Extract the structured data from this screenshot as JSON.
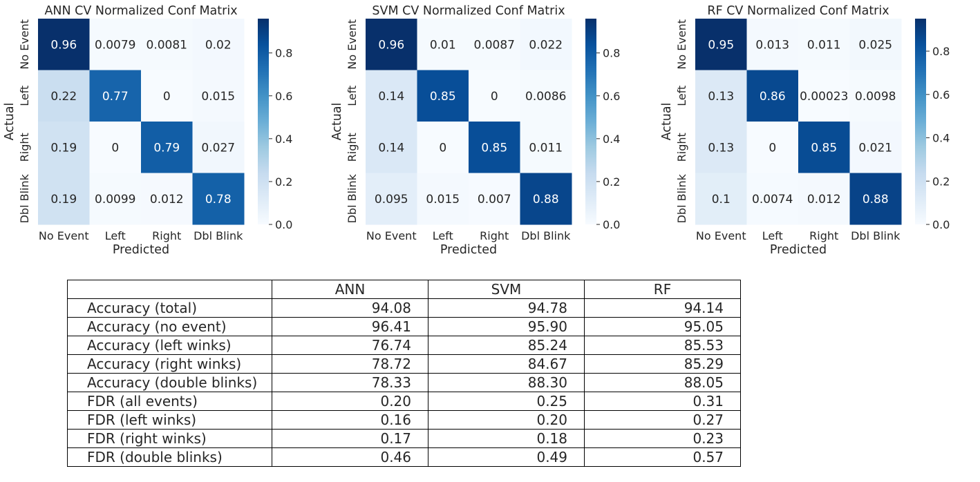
{
  "chart_data": [
    {
      "type": "heatmap",
      "title": "ANN CV Normalized Conf Matrix",
      "xlabel": "Predicted",
      "ylabel": "Actual",
      "x_categories": [
        "No Event",
        "Left",
        "Right",
        "Dbl Blink"
      ],
      "y_categories": [
        "No Event",
        "Left",
        "Right",
        "Dbl Blink"
      ],
      "values": [
        [
          0.96,
          0.0079,
          0.0081,
          0.02
        ],
        [
          0.22,
          0.77,
          0,
          0.015
        ],
        [
          0.19,
          0,
          0.79,
          0.027
        ],
        [
          0.19,
          0.0099,
          0.012,
          0.78
        ]
      ],
      "labels": [
        [
          "0.96",
          "0.0079",
          "0.0081",
          "0.02"
        ],
        [
          "0.22",
          "0.77",
          "0",
          "0.015"
        ],
        [
          "0.19",
          "0",
          "0.79",
          "0.027"
        ],
        [
          "0.19",
          "0.0099",
          "0.012",
          "0.78"
        ]
      ],
      "colorbar": {
        "range": [
          0,
          0.96
        ],
        "ticks": [
          0.0,
          0.2,
          0.4,
          0.6,
          0.8
        ],
        "tick_labels": [
          "0.0",
          "0.2",
          "0.4",
          "0.6",
          "0.8"
        ]
      }
    },
    {
      "type": "heatmap",
      "title": "SVM CV Normalized Conf Matrix",
      "xlabel": "Predicted",
      "ylabel": "Actual",
      "x_categories": [
        "No Event",
        "Left",
        "Right",
        "Dbl Blink"
      ],
      "y_categories": [
        "No Event",
        "Left",
        "Right",
        "Dbl Blink"
      ],
      "values": [
        [
          0.96,
          0.01,
          0.0087,
          0.022
        ],
        [
          0.14,
          0.85,
          0,
          0.0086
        ],
        [
          0.14,
          0,
          0.85,
          0.011
        ],
        [
          0.095,
          0.015,
          0.007,
          0.88
        ]
      ],
      "labels": [
        [
          "0.96",
          "0.01",
          "0.0087",
          "0.022"
        ],
        [
          "0.14",
          "0.85",
          "0",
          "0.0086"
        ],
        [
          "0.14",
          "0",
          "0.85",
          "0.011"
        ],
        [
          "0.095",
          "0.015",
          "0.007",
          "0.88"
        ]
      ],
      "colorbar": {
        "range": [
          0,
          0.96
        ],
        "ticks": [
          0.0,
          0.2,
          0.4,
          0.6,
          0.8
        ],
        "tick_labels": [
          "0.0",
          "0.2",
          "0.4",
          "0.6",
          "0.8"
        ]
      }
    },
    {
      "type": "heatmap",
      "title": "RF CV Normalized Conf Matrix",
      "xlabel": "Predicted",
      "ylabel": "Actual",
      "x_categories": [
        "No Event",
        "Left",
        "Right",
        "Dbl Blink"
      ],
      "y_categories": [
        "No Event",
        "Left",
        "Right",
        "Dbl Blink"
      ],
      "values": [
        [
          0.95,
          0.013,
          0.011,
          0.025
        ],
        [
          0.13,
          0.86,
          0.00023,
          0.0098
        ],
        [
          0.13,
          0,
          0.85,
          0.021
        ],
        [
          0.1,
          0.0074,
          0.012,
          0.88
        ]
      ],
      "labels": [
        [
          "0.95",
          "0.013",
          "0.011",
          "0.025"
        ],
        [
          "0.13",
          "0.86",
          "0.00023",
          "0.0098"
        ],
        [
          "0.13",
          "0",
          "0.85",
          "0.021"
        ],
        [
          "0.1",
          "0.0074",
          "0.012",
          "0.88"
        ]
      ],
      "colorbar": {
        "range": [
          0,
          0.95
        ],
        "ticks": [
          0.0,
          0.2,
          0.4,
          0.6,
          0.8
        ],
        "tick_labels": [
          "0.0",
          "0.2",
          "0.4",
          "0.6",
          "0.8"
        ]
      }
    },
    {
      "type": "table",
      "columns": [
        "",
        "ANN",
        "SVM",
        "RF"
      ],
      "rows": [
        {
          "label": "Accuracy (total)",
          "values": [
            "94.08",
            "94.78",
            "94.14"
          ]
        },
        {
          "label": "Accuracy (no event)",
          "values": [
            "96.41",
            "95.90",
            "95.05"
          ]
        },
        {
          "label": "Accuracy (left winks)",
          "values": [
            "76.74",
            "85.24",
            "85.53"
          ]
        },
        {
          "label": "Accuracy (right winks)",
          "values": [
            "78.72",
            "84.67",
            "85.29"
          ]
        },
        {
          "label": "Accuracy (double blinks)",
          "values": [
            "78.33",
            "88.30",
            "88.05"
          ]
        },
        {
          "label": "FDR (all events)",
          "values": [
            "0.20",
            "0.25",
            "0.31"
          ]
        },
        {
          "label": "FDR (left winks)",
          "values": [
            "0.16",
            "0.20",
            "0.27"
          ]
        },
        {
          "label": "FDR (right winks)",
          "values": [
            "0.17",
            "0.18",
            "0.23"
          ]
        },
        {
          "label": "FDR (double blinks)",
          "values": [
            "0.46",
            "0.49",
            "0.57"
          ]
        }
      ]
    }
  ],
  "colormap": {
    "name": "Blues",
    "stops": [
      "#f7fbff",
      "#deebf7",
      "#c6dbef",
      "#9ecae1",
      "#6baed6",
      "#4292c6",
      "#2171b5",
      "#08519c",
      "#08306b"
    ]
  }
}
